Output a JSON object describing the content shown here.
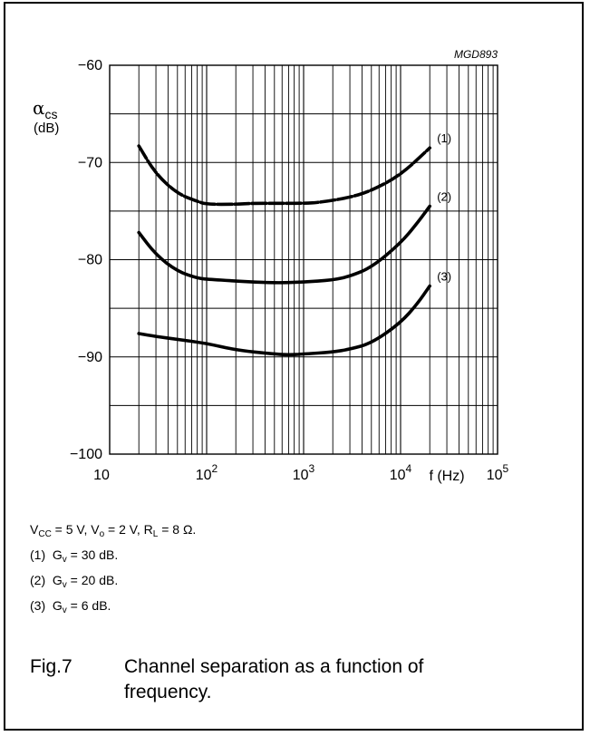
{
  "figure_code": "MGD893",
  "conditions": {
    "vcc_label": "V",
    "vcc_sub": "CC",
    "vcc_value": " = 5 V, V",
    "vo_sub": "o",
    "vo_value": " = 2 V, R",
    "rl_sub": "L",
    "rl_value": " = 8 Ω."
  },
  "notes": [
    {
      "prefix": "(1)",
      "sym": "G",
      "sub": "v",
      "value": " = 30 dB."
    },
    {
      "prefix": "(2)",
      "sym": "G",
      "sub": "v",
      "value": " = 20 dB."
    },
    {
      "prefix": "(3)",
      "sym": "G",
      "sub": "v",
      "value": " = 6 dB."
    }
  ],
  "caption": {
    "number": "Fig.7",
    "text": "Channel separation as a function of frequency."
  },
  "chart_data": {
    "type": "line",
    "x_scale": "log",
    "xlim": [
      10,
      100000
    ],
    "ylim": [
      -100,
      -60
    ],
    "x_ticks": [
      {
        "value": 10,
        "base": "10",
        "exp": ""
      },
      {
        "value": 100,
        "base": "10",
        "exp": "2"
      },
      {
        "value": 1000,
        "base": "10",
        "exp": "3"
      },
      {
        "value": 10000,
        "base": "10",
        "exp": "4"
      },
      {
        "value": 100000,
        "base": "10",
        "exp": "5"
      }
    ],
    "y_ticks": [
      -60,
      -70,
      -80,
      -90,
      -100
    ],
    "y_tick_labels": [
      "−60",
      "−70",
      "−80",
      "−90",
      "−100"
    ],
    "xlabel": "f (Hz)",
    "ylabel_symbol": "α",
    "ylabel_sub": "cs",
    "ylabel_unit": "(dB)",
    "grid": true,
    "series": [
      {
        "name": "(1)",
        "style": "dashed",
        "x": [
          20,
          30,
          50,
          80,
          100,
          200,
          300,
          500,
          1000,
          1500,
          3000,
          5000,
          10000,
          20000
        ],
        "y": [
          -68.3,
          -71.2,
          -73.2,
          -74.0,
          -74.3,
          -74.3,
          -74.2,
          -74.2,
          -74.2,
          -74.1,
          -73.6,
          -72.9,
          -71.3,
          -68.5
        ]
      },
      {
        "name": "(2)",
        "style": "solid",
        "x": [
          20,
          30,
          50,
          80,
          100,
          200,
          500,
          1000,
          2000,
          3000,
          5000,
          10000,
          15000,
          20000
        ],
        "y": [
          -77.2,
          -79.5,
          -81.2,
          -81.9,
          -82.0,
          -82.2,
          -82.4,
          -82.3,
          -82.1,
          -81.7,
          -80.8,
          -78.3,
          -76.2,
          -74.5
        ]
      },
      {
        "name": "(3)",
        "style": "solid",
        "x": [
          20,
          30,
          50,
          100,
          200,
          500,
          700,
          1000,
          2000,
          3000,
          5000,
          10000,
          15000,
          20000
        ],
        "y": [
          -87.6,
          -87.9,
          -88.2,
          -88.6,
          -89.3,
          -89.7,
          -89.8,
          -89.7,
          -89.5,
          -89.2,
          -88.6,
          -86.5,
          -84.5,
          -82.7
        ]
      }
    ]
  }
}
